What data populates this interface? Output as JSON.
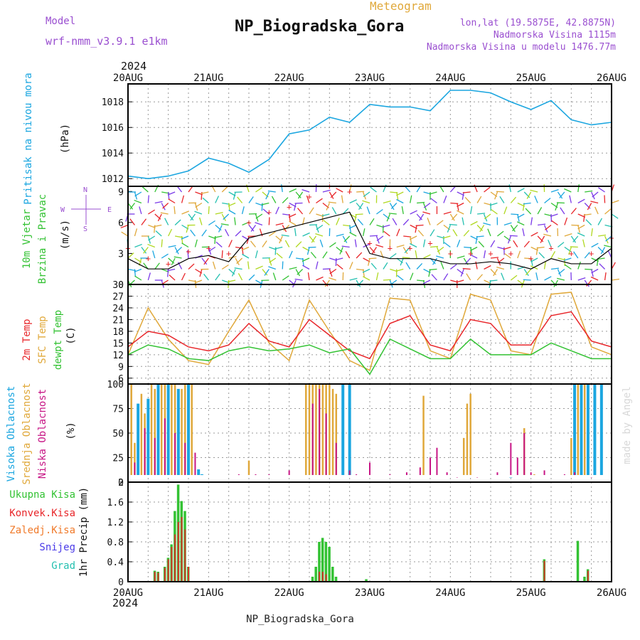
{
  "header": {
    "model_label": "Model",
    "model_name": "wrf-nmm_v3.9.1 e1km",
    "subtitle": "Meteogram",
    "title": "NP_Biogradska_Gora",
    "lonlat": "lon,lat (19.5875E, 42.8875N)",
    "elev": "Nadmorska Visina 1115m",
    "elev_model": "Nadmorska Visina u modelu 1476.77m",
    "year_top": "2024",
    "year_bottom": "2024",
    "footer": "NP_Biogradska_Gora",
    "credit": "made by Angel"
  },
  "colors": {
    "pressure": "#1ba6e0",
    "wind_speed": "#000000",
    "wind_gust": "#e8262a",
    "t2m": "#e8262a",
    "sfc": "#e0a83a",
    "dewpt": "#33c233",
    "cloud_high": "#1ba6e0",
    "cloud_mid": "#e0a83a",
    "cloud_low": "#c71585",
    "precip_total": "#33c233",
    "precip_conv": "#e8262a",
    "precip_frz": "#f07a2a",
    "precip_snow": "#4a3ae8",
    "precip_hail": "#24c0b0"
  },
  "chart_data": [
    {
      "type": "line",
      "name": "pressure",
      "ylabel_left": "Pritisak na nivou mora",
      "ylabel_unit": "(hPa)",
      "x_ticks": [
        "20AUG",
        "21AUG",
        "22AUG",
        "23AUG",
        "24AUG",
        "25AUG",
        "26AUG"
      ],
      "ylim": [
        1011.4,
        1019.4
      ],
      "yticks": [
        1012,
        1014,
        1016,
        1018
      ],
      "x_hours": [
        0,
        6,
        12,
        18,
        24,
        30,
        36,
        42,
        48,
        54,
        60,
        66,
        72,
        78,
        84,
        90,
        96,
        102,
        108,
        114,
        120,
        126,
        132,
        138,
        144
      ],
      "values": [
        1012.2,
        1012.0,
        1012.2,
        1012.6,
        1013.6,
        1013.2,
        1012.5,
        1013.5,
        1015.5,
        1015.8,
        1016.8,
        1016.4,
        1017.8,
        1017.6,
        1017.6,
        1017.3,
        1018.9,
        1018.9,
        1018.7,
        1018.0,
        1017.4,
        1018.1,
        1016.6,
        1016.2,
        1016.4
      ],
      "grid": true
    },
    {
      "type": "line",
      "name": "wind",
      "ylabel_left": "10m Vjetar",
      "ylabel_left2": "Brzina i Pravac",
      "ylabel_unit": "(m/s)",
      "compass": {
        "n": "N",
        "s": "S",
        "w": "W",
        "e": "E"
      },
      "ylim": [
        0,
        9.5
      ],
      "yticks": [
        0,
        3,
        6,
        9
      ],
      "x_hours": [
        0,
        6,
        12,
        18,
        24,
        30,
        36,
        42,
        48,
        54,
        60,
        66,
        72,
        78,
        84,
        90,
        96,
        102,
        108,
        114,
        120,
        126,
        132,
        138,
        144
      ],
      "speed": [
        2.5,
        1.5,
        1.5,
        2.5,
        2.8,
        2.2,
        4.5,
        5.0,
        5.5,
        6.0,
        6.5,
        7.0,
        3.0,
        2.5,
        2.5,
        2.5,
        2.0,
        2.0,
        2.2,
        2.0,
        1.5,
        2.5,
        2.0,
        2.0,
        3.5
      ],
      "gust": [
        3.5,
        2.5,
        2.0,
        3.2,
        3.5,
        3.0,
        6.0,
        7.0,
        7.5,
        8.5,
        9.5,
        9.0,
        4.0,
        3.5,
        3.5,
        4.0,
        3.0,
        3.0,
        3.0,
        3.0,
        2.5,
        3.5,
        3.0,
        3.0,
        4.5
      ]
    },
    {
      "type": "line",
      "name": "temperature",
      "ylabel_left": "2m Temp",
      "ylabel_left2": "SFC Temp",
      "ylabel_left3": "dewpt Temp",
      "ylabel_unit": "(C)",
      "ylim": [
        4.5,
        30
      ],
      "yticks": [
        6,
        9,
        12,
        15,
        18,
        21,
        24,
        27,
        30
      ],
      "x_hours": [
        0,
        6,
        12,
        18,
        24,
        30,
        36,
        42,
        48,
        54,
        60,
        66,
        72,
        78,
        84,
        90,
        96,
        102,
        108,
        114,
        120,
        126,
        132,
        138,
        144
      ],
      "t2m": [
        14.0,
        18.0,
        17.0,
        14.0,
        13.0,
        14.5,
        20.0,
        15.5,
        14.0,
        21.0,
        17.0,
        13.0,
        11.0,
        20.0,
        22.0,
        14.5,
        13.0,
        21.0,
        20.0,
        14.5,
        14.5,
        22.0,
        23.0,
        15.5,
        14.0
      ],
      "sfc": [
        12.0,
        24.0,
        16.0,
        10.5,
        9.5,
        18.0,
        26.0,
        15.0,
        10.5,
        26.0,
        18.0,
        10.5,
        8.0,
        26.5,
        26.0,
        13.0,
        11.0,
        27.5,
        26.0,
        13.0,
        12.0,
        27.5,
        28.0,
        14.0,
        12.0
      ],
      "dewpt": [
        12.0,
        14.5,
        13.5,
        11.0,
        10.5,
        13.0,
        14.0,
        13.0,
        13.5,
        14.5,
        12.5,
        13.5,
        7.0,
        16.0,
        13.5,
        11.0,
        11.0,
        16.0,
        12.0,
        12.0,
        12.0,
        15.0,
        13.0,
        11.0,
        11.0
      ],
      "grid": true
    },
    {
      "type": "bar",
      "name": "clouds",
      "ylabel_left": "Visoka Oblacnost",
      "ylabel_left2": "Srednja Oblacnost",
      "ylabel_left3": "Niska Oblacnost",
      "ylabel_unit": "(%)",
      "ylim": [
        0,
        100
      ],
      "yticks": [
        0,
        25,
        50,
        75,
        100
      ],
      "series": [
        {
          "name": "Visoka Oblacnost",
          "bars": [
            [
              3,
              80
            ],
            [
              6,
              85
            ],
            [
              9,
              100
            ],
            [
              12,
              100
            ],
            [
              15,
              95
            ],
            [
              18,
              100
            ],
            [
              21,
              13
            ],
            [
              22,
              8
            ],
            [
              64,
              100
            ],
            [
              66,
              100
            ],
            [
              114,
              5
            ],
            [
              133,
              100
            ],
            [
              135,
              100
            ],
            [
              137,
              100
            ],
            [
              139,
              100
            ],
            [
              141,
              100
            ]
          ]
        },
        {
          "name": "Srednja Oblacnost",
          "bars": [
            [
              1,
              100
            ],
            [
              2,
              40
            ],
            [
              4,
              90
            ],
            [
              5,
              70
            ],
            [
              7,
              100
            ],
            [
              8,
              95
            ],
            [
              10,
              100
            ],
            [
              11,
              100
            ],
            [
              13,
              100
            ],
            [
              14,
              100
            ],
            [
              16,
              95
            ],
            [
              17,
              100
            ],
            [
              19,
              100
            ],
            [
              36,
              22
            ],
            [
              53,
              100
            ],
            [
              54,
              100
            ],
            [
              55,
              100
            ],
            [
              56,
              100
            ],
            [
              57,
              100
            ],
            [
              58,
              100
            ],
            [
              59,
              100
            ],
            [
              60,
              100
            ],
            [
              61,
              95
            ],
            [
              62,
              90
            ],
            [
              88,
              88
            ],
            [
              100,
              45
            ],
            [
              101,
              80
            ],
            [
              102,
              90
            ],
            [
              118,
              55
            ],
            [
              121,
              8
            ],
            [
              132,
              45
            ],
            [
              134,
              100
            ],
            [
              136,
              100
            ]
          ]
        },
        {
          "name": "Niska Oblacnost",
          "bars": [
            [
              2,
              20
            ],
            [
              5,
              55
            ],
            [
              8,
              45
            ],
            [
              11,
              65
            ],
            [
              14,
              50
            ],
            [
              17,
              40
            ],
            [
              20,
              30
            ],
            [
              33,
              8
            ],
            [
              38,
              8
            ],
            [
              42,
              8
            ],
            [
              48,
              12
            ],
            [
              55,
              80
            ],
            [
              57,
              95
            ],
            [
              59,
              70
            ],
            [
              62,
              40
            ],
            [
              66,
              12
            ],
            [
              68,
              8
            ],
            [
              72,
              20
            ],
            [
              78,
              8
            ],
            [
              83,
              10
            ],
            [
              87,
              15
            ],
            [
              90,
              25
            ],
            [
              92,
              35
            ],
            [
              95,
              10
            ],
            [
              98,
              5
            ],
            [
              104,
              5
            ],
            [
              110,
              10
            ],
            [
              114,
              40
            ],
            [
              116,
              25
            ],
            [
              118,
              50
            ],
            [
              120,
              10
            ],
            [
              124,
              12
            ],
            [
              130,
              8
            ],
            [
              133,
              10
            ],
            [
              138,
              5
            ]
          ]
        }
      ]
    },
    {
      "type": "bar",
      "name": "precip",
      "ylabel_left": "1hr Precip",
      "ylabel_unit": "(mm)",
      "legend": [
        {
          "name": "Ukupna Kisa",
          "color": "#33c233"
        },
        {
          "name": "Konvek.Kisa",
          "color": "#e8262a"
        },
        {
          "name": "Zaledj.Kisa",
          "color": "#f07a2a"
        },
        {
          "name": "Snijeg",
          "color": "#4a3ae8"
        },
        {
          "name": "Grad",
          "color": "#24c0b0"
        }
      ],
      "ylim": [
        0,
        2
      ],
      "yticks": [
        0,
        0.4,
        0.8,
        1.2,
        1.6,
        2
      ],
      "bars_total": [
        [
          8,
          0.22
        ],
        [
          9,
          0.2
        ],
        [
          11,
          0.3
        ],
        [
          12,
          0.48
        ],
        [
          13,
          0.75
        ],
        [
          14,
          1.42
        ],
        [
          15,
          1.95
        ],
        [
          16,
          1.62
        ],
        [
          17,
          1.42
        ],
        [
          18,
          0.3
        ],
        [
          55,
          0.1
        ],
        [
          56,
          0.3
        ],
        [
          57,
          0.8
        ],
        [
          58,
          0.88
        ],
        [
          59,
          0.8
        ],
        [
          60,
          0.7
        ],
        [
          61,
          0.3
        ],
        [
          62,
          0.1
        ],
        [
          71,
          0.05
        ],
        [
          124,
          0.45
        ],
        [
          134,
          0.82
        ],
        [
          136,
          0.1
        ],
        [
          137,
          0.25
        ]
      ],
      "bars_conv": [
        [
          8,
          0.2
        ],
        [
          9,
          0.18
        ],
        [
          11,
          0.28
        ],
        [
          12,
          0.45
        ],
        [
          13,
          0.7
        ],
        [
          14,
          0.95
        ],
        [
          15,
          1.2
        ],
        [
          16,
          1.3
        ],
        [
          17,
          1.05
        ],
        [
          18,
          0.3
        ],
        [
          57,
          0.2
        ],
        [
          58,
          0.2
        ],
        [
          59,
          0.15
        ],
        [
          124,
          0.42
        ],
        [
          137,
          0.22
        ]
      ],
      "x_ticks": [
        "20AUG",
        "21AUG",
        "22AUG",
        "23AUG",
        "24AUG",
        "25AUG",
        "26AUG"
      ]
    }
  ]
}
